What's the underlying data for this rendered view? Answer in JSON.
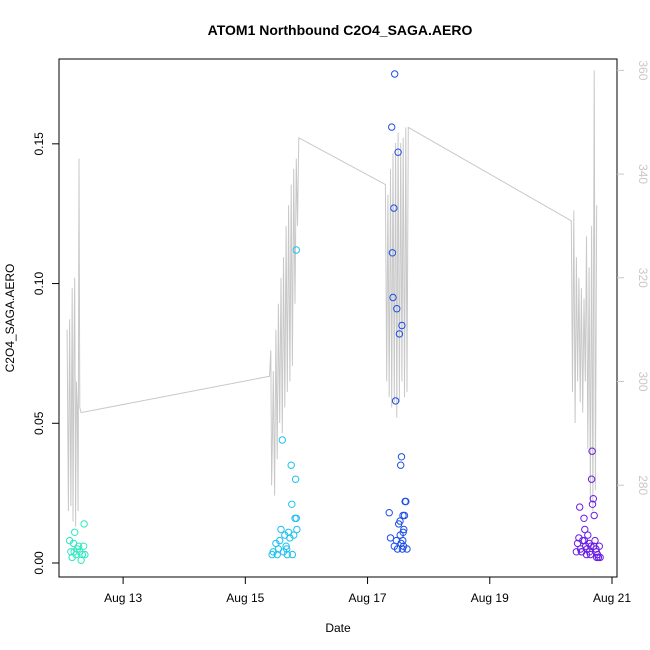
{
  "chart_data": {
    "type": "scatter",
    "title": "ATOM1 Northbound C2O4_SAGA.AERO",
    "xlabel": "Date",
    "ylabel": "C2O4_SAGA.AERO",
    "x_axis": {
      "type": "date",
      "range": [
        "2016-08-12T00:00",
        "2016-08-21T00:00"
      ],
      "ticks": [
        {
          "value": "2016-08-13T00:00",
          "label": "Aug 13"
        },
        {
          "value": "2016-08-15T00:00",
          "label": "Aug 15"
        },
        {
          "value": "2016-08-17T00:00",
          "label": "Aug 17"
        },
        {
          "value": "2016-08-19T00:00",
          "label": "Aug 19"
        },
        {
          "value": "2016-08-21T00:00",
          "label": "Aug 21"
        }
      ]
    },
    "y_axis": {
      "range": [
        0,
        0.18
      ],
      "ticks": [
        {
          "value": 0.0,
          "label": "0.00"
        },
        {
          "value": 0.05,
          "label": "0.05"
        },
        {
          "value": 0.1,
          "label": "0.10"
        },
        {
          "value": 0.15,
          "label": "0.15"
        }
      ]
    },
    "y2_axis": {
      "range": [
        265,
        362
      ],
      "color": "#c8c8c8",
      "ticks": [
        {
          "value": 280,
          "label": "280"
        },
        {
          "value": 300,
          "label": "300"
        },
        {
          "value": 320,
          "label": "320"
        },
        {
          "value": 340,
          "label": "340"
        },
        {
          "value": 360,
          "label": "360"
        }
      ]
    },
    "scatter_series": [
      {
        "color": "#2ee8c0",
        "points": [
          [
            "2016-08-12T03:00",
            0.008
          ],
          [
            "2016-08-12T03:30",
            0.004
          ],
          [
            "2016-08-12T04:00",
            0.002
          ],
          [
            "2016-08-12T04:30",
            0.007
          ],
          [
            "2016-08-12T05:00",
            0.011
          ],
          [
            "2016-08-12T05:30",
            0.003
          ],
          [
            "2016-08-12T06:00",
            0.005
          ],
          [
            "2016-08-12T06:30",
            0.006
          ],
          [
            "2016-08-12T07:00",
            0.004
          ],
          [
            "2016-08-12T07:30",
            0.001
          ],
          [
            "2016-08-12T08:00",
            0.003
          ],
          [
            "2016-08-12T08:30",
            0.006
          ],
          [
            "2016-08-12T08:40",
            0.014
          ],
          [
            "2016-08-12T09:00",
            0.003
          ],
          [
            "2016-08-12T04:45",
            0.004
          ]
        ]
      },
      {
        "color": "#1ec1ee",
        "points": [
          [
            "2016-08-15T10:30",
            0.003
          ],
          [
            "2016-08-15T11:00",
            0.004
          ],
          [
            "2016-08-15T12:00",
            0.007
          ],
          [
            "2016-08-15T12:30",
            0.003
          ],
          [
            "2016-08-15T13:00",
            0.005
          ],
          [
            "2016-08-15T14:00",
            0.012
          ],
          [
            "2016-08-15T14:30",
            0.044
          ],
          [
            "2016-08-15T15:00",
            0.004
          ],
          [
            "2016-08-15T15:30",
            0.01
          ],
          [
            "2016-08-15T16:00",
            0.006
          ],
          [
            "2016-08-15T16:30",
            0.003
          ],
          [
            "2016-08-15T17:00",
            0.011
          ],
          [
            "2016-08-15T17:30",
            0.009
          ],
          [
            "2016-08-15T18:00",
            0.035
          ],
          [
            "2016-08-15T18:15",
            0.021
          ],
          [
            "2016-08-15T18:30",
            0.003
          ],
          [
            "2016-08-15T19:00",
            0.01
          ],
          [
            "2016-08-15T19:30",
            0.016
          ],
          [
            "2016-08-15T19:45",
            0.03
          ],
          [
            "2016-08-15T20:00",
            0.016
          ],
          [
            "2016-08-15T20:15",
            0.012
          ],
          [
            "2016-08-15T20:00",
            0.112
          ],
          [
            "2016-08-15T13:30",
            0.008
          ],
          [
            "2016-08-15T16:15",
            0.005
          ]
        ]
      },
      {
        "color": "#1e4fe6",
        "points": [
          [
            "2016-08-17T08:30",
            0.018
          ],
          [
            "2016-08-17T09:00",
            0.009
          ],
          [
            "2016-08-17T09:30",
            0.156
          ],
          [
            "2016-08-17T09:45",
            0.111
          ],
          [
            "2016-08-17T10:00",
            0.095
          ],
          [
            "2016-08-17T10:20",
            0.127
          ],
          [
            "2016-08-17T10:40",
            0.175
          ],
          [
            "2016-08-17T11:00",
            0.058
          ],
          [
            "2016-08-17T11:30",
            0.091
          ],
          [
            "2016-08-17T12:00",
            0.147
          ],
          [
            "2016-08-17T12:30",
            0.082
          ],
          [
            "2016-08-17T13:30",
            0.085
          ],
          [
            "2016-08-17T13:00",
            0.035
          ],
          [
            "2016-08-17T13:20",
            0.038
          ],
          [
            "2016-08-17T11:20",
            0.008
          ],
          [
            "2016-08-17T11:45",
            0.005
          ],
          [
            "2016-08-17T12:15",
            0.014
          ],
          [
            "2016-08-17T12:45",
            0.015
          ],
          [
            "2016-08-17T13:10",
            0.007
          ],
          [
            "2016-08-17T13:40",
            0.005
          ],
          [
            "2016-08-17T14:00",
            0.011
          ],
          [
            "2016-08-17T14:15",
            0.012
          ],
          [
            "2016-08-17T14:30",
            0.017
          ],
          [
            "2016-08-17T14:45",
            0.022
          ],
          [
            "2016-08-17T15:00",
            0.022
          ],
          [
            "2016-08-17T15:30",
            0.005
          ],
          [
            "2016-08-17T10:30",
            0.006
          ],
          [
            "2016-08-17T12:50",
            0.01
          ],
          [
            "2016-08-17T13:50",
            0.008
          ],
          [
            "2016-08-17T14:10",
            0.006
          ],
          [
            "2016-08-17T13:55",
            0.017
          ]
        ]
      },
      {
        "color": "#6a1ee6",
        "points": [
          [
            "2016-08-20T10:00",
            0.004
          ],
          [
            "2016-08-20T10:30",
            0.007
          ],
          [
            "2016-08-20T11:00",
            0.009
          ],
          [
            "2016-08-20T11:20",
            0.02
          ],
          [
            "2016-08-20T11:40",
            0.005
          ],
          [
            "2016-08-20T12:00",
            0.004
          ],
          [
            "2016-08-20T12:30",
            0.008
          ],
          [
            "2016-08-20T13:00",
            0.016
          ],
          [
            "2016-08-20T13:20",
            0.012
          ],
          [
            "2016-08-20T13:40",
            0.006
          ],
          [
            "2016-08-20T14:00",
            0.003
          ],
          [
            "2016-08-20T14:30",
            0.01
          ],
          [
            "2016-08-20T15:00",
            0.007
          ],
          [
            "2016-08-20T15:30",
            0.003
          ],
          [
            "2016-08-20T16:00",
            0.03
          ],
          [
            "2016-08-20T16:10",
            0.04
          ],
          [
            "2016-08-20T16:20",
            0.021
          ],
          [
            "2016-08-20T16:40",
            0.023
          ],
          [
            "2016-08-20T17:00",
            0.017
          ],
          [
            "2016-08-20T17:20",
            0.008
          ],
          [
            "2016-08-20T17:40",
            0.005
          ],
          [
            "2016-08-20T18:00",
            0.002
          ],
          [
            "2016-08-20T18:20",
            0.003
          ],
          [
            "2016-08-20T18:40",
            0.002
          ],
          [
            "2016-08-20T19:00",
            0.006
          ],
          [
            "2016-08-20T19:20",
            0.002
          ],
          [
            "2016-08-20T12:10",
            0.004
          ],
          [
            "2016-08-20T14:10",
            0.005
          ],
          [
            "2016-08-20T15:10",
            0.004
          ],
          [
            "2016-08-20T16:50",
            0.006
          ],
          [
            "2016-08-20T17:50",
            0.004
          ],
          [
            "2016-08-20T13:10",
            0.008
          ],
          [
            "2016-08-20T15:40",
            0.006
          ]
        ]
      }
    ],
    "line_series": {
      "axis": "y2",
      "color": "#c8c8c8",
      "points": [
        [
          "2016-08-12T02:00",
          310
        ],
        [
          "2016-08-12T02:30",
          275
        ],
        [
          "2016-08-12T03:00",
          312
        ],
        [
          "2016-08-12T03:30",
          276
        ],
        [
          "2016-08-12T04:00",
          318
        ],
        [
          "2016-08-12T04:20",
          273
        ],
        [
          "2016-08-12T04:40",
          305
        ],
        [
          "2016-08-12T05:00",
          320
        ],
        [
          "2016-08-12T05:20",
          272
        ],
        [
          "2016-08-12T05:40",
          300
        ],
        [
          "2016-08-12T06:00",
          295
        ],
        [
          "2016-08-12T06:20",
          275
        ],
        [
          "2016-08-12T06:40",
          343
        ],
        [
          "2016-08-12T07:00",
          295
        ],
        [
          "2016-08-12T07:30",
          294
        ],
        [
          "2016-08-15T09:30",
          301
        ],
        [
          "2016-08-15T10:00",
          306
        ],
        [
          "2016-08-15T10:20",
          280
        ],
        [
          "2016-08-15T10:40",
          290
        ],
        [
          "2016-08-15T11:00",
          302
        ],
        [
          "2016-08-15T11:30",
          278
        ],
        [
          "2016-08-15T12:00",
          310
        ],
        [
          "2016-08-15T12:30",
          285
        ],
        [
          "2016-08-15T13:00",
          315
        ],
        [
          "2016-08-15T13:30",
          292
        ],
        [
          "2016-08-15T14:00",
          320
        ],
        [
          "2016-08-15T14:30",
          290
        ],
        [
          "2016-08-15T15:00",
          324
        ],
        [
          "2016-08-15T15:30",
          295
        ],
        [
          "2016-08-15T16:00",
          330
        ],
        [
          "2016-08-15T16:30",
          298
        ],
        [
          "2016-08-15T17:00",
          334
        ],
        [
          "2016-08-15T17:30",
          300
        ],
        [
          "2016-08-15T18:00",
          338
        ],
        [
          "2016-08-15T18:30",
          303
        ],
        [
          "2016-08-15T19:00",
          341
        ],
        [
          "2016-08-15T19:30",
          315
        ],
        [
          "2016-08-15T20:00",
          343
        ],
        [
          "2016-08-15T20:30",
          330
        ],
        [
          "2016-08-15T21:00",
          347
        ],
        [
          "2016-08-17T07:00",
          338
        ],
        [
          "2016-08-17T07:30",
          300
        ],
        [
          "2016-08-17T08:00",
          336
        ],
        [
          "2016-08-17T08:30",
          297
        ],
        [
          "2016-08-17T09:00",
          341
        ],
        [
          "2016-08-17T09:30",
          295
        ],
        [
          "2016-08-17T10:00",
          344
        ],
        [
          "2016-08-17T10:30",
          296
        ],
        [
          "2016-08-17T11:00",
          346
        ],
        [
          "2016-08-17T11:30",
          293
        ],
        [
          "2016-08-17T12:00",
          348
        ],
        [
          "2016-08-17T12:30",
          296
        ],
        [
          "2016-08-17T13:00",
          346
        ],
        [
          "2016-08-17T13:30",
          300
        ],
        [
          "2016-08-17T14:00",
          347
        ],
        [
          "2016-08-17T14:30",
          297
        ],
        [
          "2016-08-17T15:00",
          349
        ],
        [
          "2016-08-17T15:30",
          298
        ],
        [
          "2016-08-17T16:00",
          349
        ],
        [
          "2016-08-20T08:00",
          331
        ],
        [
          "2016-08-20T08:30",
          298
        ],
        [
          "2016-08-20T09:00",
          333
        ],
        [
          "2016-08-20T09:30",
          292
        ],
        [
          "2016-08-20T10:00",
          324
        ],
        [
          "2016-08-20T10:30",
          300
        ],
        [
          "2016-08-20T11:00",
          320
        ],
        [
          "2016-08-20T11:30",
          296
        ],
        [
          "2016-08-20T12:00",
          318
        ],
        [
          "2016-08-20T12:30",
          294
        ],
        [
          "2016-08-20T13:00",
          316
        ],
        [
          "2016-08-20T13:30",
          300
        ],
        [
          "2016-08-20T14:00",
          328
        ],
        [
          "2016-08-20T14:30",
          287
        ],
        [
          "2016-08-20T15:00",
          322
        ],
        [
          "2016-08-20T15:30",
          277
        ],
        [
          "2016-08-20T16:00",
          330
        ],
        [
          "2016-08-20T16:30",
          275
        ],
        [
          "2016-08-20T17:00",
          360
        ],
        [
          "2016-08-20T17:30",
          279
        ],
        [
          "2016-08-20T18:00",
          334
        ]
      ]
    }
  }
}
